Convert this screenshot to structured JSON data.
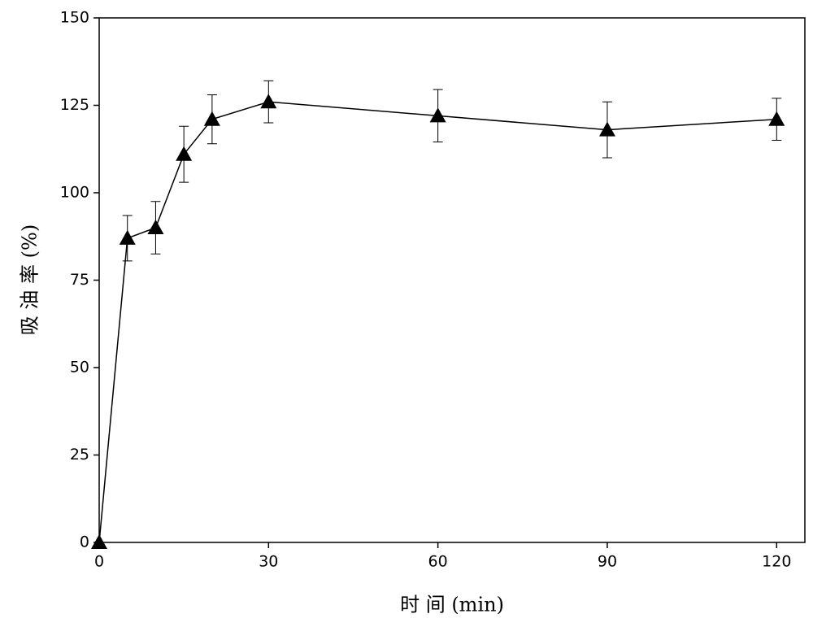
{
  "chart_data": {
    "type": "line",
    "xlabel": "时 间 (min)",
    "ylabel": "吸 油 率 (%)",
    "x": [
      0,
      5,
      10,
      15,
      20,
      30,
      60,
      90,
      120
    ],
    "series": [
      {
        "color": "#000000",
        "values": [
          0,
          87,
          90,
          111,
          121,
          126,
          122,
          118,
          121
        ],
        "errors": [
          0,
          6.5,
          7.5,
          8,
          7,
          6,
          7.5,
          8,
          6
        ]
      }
    ],
    "xlim": [
      0,
      125
    ],
    "xticks": [
      0,
      30,
      60,
      90,
      120
    ],
    "ylim": [
      0,
      150
    ],
    "yticks": [
      0,
      25,
      50,
      75,
      100,
      125,
      150
    ]
  }
}
